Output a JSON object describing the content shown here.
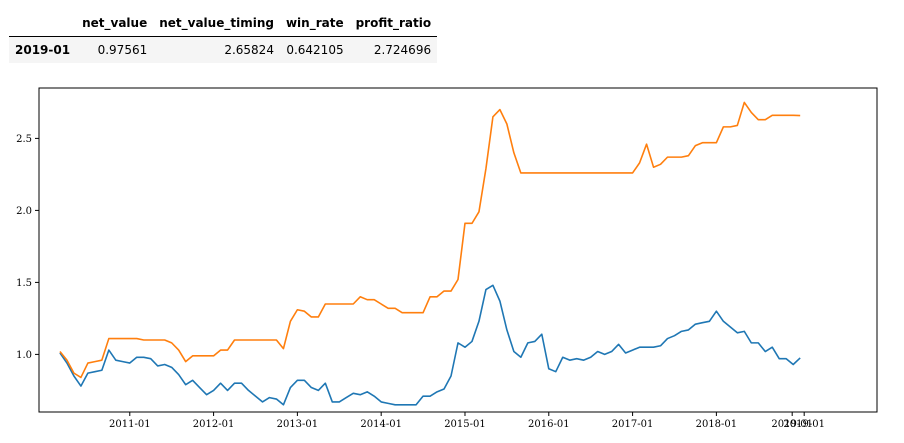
{
  "table": {
    "columns": [
      "net_value",
      "net_value_timing",
      "win_rate",
      "profit_ratio"
    ],
    "rows": [
      {
        "index": "2019-01",
        "values": [
          "0.97561",
          "2.65824",
          "0.642105",
          "2.724696"
        ]
      }
    ]
  },
  "chart_data": {
    "type": "line",
    "title": "",
    "xlabel": "",
    "ylabel": "",
    "x_ticks": [
      "2011-01",
      "2012-01",
      "2013-01",
      "2014-01",
      "2015-01",
      "2016-01",
      "2017-01",
      "2018-01",
      "2019-01",
      "2019-01"
    ],
    "y_ticks": [
      "1.0",
      "1.5",
      "2.0",
      "2.5"
    ],
    "ylim": [
      0.6,
      2.85
    ],
    "xlim": [
      "2009-12",
      "2019-12"
    ],
    "grid": false,
    "legend": "none",
    "series": [
      {
        "color": "#1f77b4",
        "x": [
          "2010-03",
          "2010-04",
          "2010-05",
          "2010-06",
          "2010-07",
          "2010-08",
          "2010-09",
          "2010-10",
          "2010-11",
          "2010-12",
          "2011-01",
          "2011-02",
          "2011-03",
          "2011-04",
          "2011-05",
          "2011-06",
          "2011-07",
          "2011-08",
          "2011-09",
          "2011-10",
          "2011-11",
          "2011-12",
          "2012-01",
          "2012-02",
          "2012-03",
          "2012-04",
          "2012-05",
          "2012-06",
          "2012-07",
          "2012-08",
          "2012-09",
          "2012-10",
          "2012-11",
          "2012-12",
          "2013-01",
          "2013-02",
          "2013-03",
          "2013-04",
          "2013-05",
          "2013-06",
          "2013-07",
          "2013-08",
          "2013-09",
          "2013-10",
          "2013-11",
          "2013-12",
          "2014-01",
          "2014-02",
          "2014-03",
          "2014-04",
          "2014-05",
          "2014-06",
          "2014-07",
          "2014-08",
          "2014-09",
          "2014-10",
          "2014-11",
          "2014-12",
          "2015-01",
          "2015-02",
          "2015-03",
          "2015-04",
          "2015-05",
          "2015-06",
          "2015-07",
          "2015-08",
          "2015-09",
          "2015-10",
          "2015-11",
          "2015-12",
          "2016-01",
          "2016-02",
          "2016-03",
          "2016-04",
          "2016-05",
          "2016-06",
          "2016-07",
          "2016-08",
          "2016-09",
          "2016-10",
          "2016-11",
          "2016-12",
          "2017-01",
          "2017-02",
          "2017-03",
          "2017-04",
          "2017-05",
          "2017-06",
          "2017-07",
          "2017-08",
          "2017-09",
          "2017-10",
          "2017-11",
          "2017-12",
          "2018-01",
          "2018-02",
          "2018-03",
          "2018-04",
          "2018-05",
          "2018-06",
          "2018-07",
          "2018-08",
          "2018-09",
          "2018-10",
          "2018-11",
          "2018-12",
          "2019-01"
        ],
        "values": [
          1.01,
          0.94,
          0.85,
          0.78,
          0.87,
          0.88,
          0.89,
          1.03,
          0.96,
          0.95,
          0.94,
          0.98,
          0.98,
          0.97,
          0.92,
          0.93,
          0.91,
          0.86,
          0.79,
          0.82,
          0.77,
          0.72,
          0.75,
          0.8,
          0.75,
          0.8,
          0.8,
          0.75,
          0.71,
          0.67,
          0.7,
          0.69,
          0.65,
          0.77,
          0.82,
          0.82,
          0.77,
          0.75,
          0.8,
          0.67,
          0.67,
          0.7,
          0.73,
          0.72,
          0.74,
          0.71,
          0.67,
          0.66,
          0.65,
          0.65,
          0.65,
          0.65,
          0.71,
          0.71,
          0.74,
          0.76,
          0.85,
          1.08,
          1.05,
          1.09,
          1.23,
          1.45,
          1.48,
          1.37,
          1.17,
          1.02,
          0.98,
          1.08,
          1.09,
          1.14,
          0.9,
          0.88,
          0.98,
          0.96,
          0.97,
          0.96,
          0.98,
          1.02,
          1.0,
          1.02,
          1.07,
          1.01,
          1.03,
          1.05,
          1.05,
          1.05,
          1.06,
          1.11,
          1.13,
          1.16,
          1.17,
          1.21,
          1.22,
          1.23,
          1.3,
          1.23,
          1.19,
          1.15,
          1.16,
          1.08,
          1.08,
          1.02,
          1.05,
          0.97,
          0.97,
          0.93,
          0.97561
        ]
      },
      {
        "color": "#ff7f0e",
        "x": [
          "2010-03",
          "2010-04",
          "2010-05",
          "2010-06",
          "2010-07",
          "2010-08",
          "2010-09",
          "2010-10",
          "2010-11",
          "2010-12",
          "2011-01",
          "2011-02",
          "2011-03",
          "2011-04",
          "2011-05",
          "2011-06",
          "2011-07",
          "2011-08",
          "2011-09",
          "2011-10",
          "2011-11",
          "2011-12",
          "2012-01",
          "2012-02",
          "2012-03",
          "2012-04",
          "2012-05",
          "2012-06",
          "2012-07",
          "2012-08",
          "2012-09",
          "2012-10",
          "2012-11",
          "2012-12",
          "2013-01",
          "2013-02",
          "2013-03",
          "2013-04",
          "2013-05",
          "2013-06",
          "2013-07",
          "2013-08",
          "2013-09",
          "2013-10",
          "2013-11",
          "2013-12",
          "2014-01",
          "2014-02",
          "2014-03",
          "2014-04",
          "2014-05",
          "2014-06",
          "2014-07",
          "2014-08",
          "2014-09",
          "2014-10",
          "2014-11",
          "2014-12",
          "2015-01",
          "2015-02",
          "2015-03",
          "2015-04",
          "2015-05",
          "2015-06",
          "2015-07",
          "2015-08",
          "2015-09",
          "2015-10",
          "2015-11",
          "2015-12",
          "2016-01",
          "2016-02",
          "2016-03",
          "2016-04",
          "2016-05",
          "2016-06",
          "2016-07",
          "2016-08",
          "2016-09",
          "2016-10",
          "2016-11",
          "2016-12",
          "2017-01",
          "2017-02",
          "2017-03",
          "2017-04",
          "2017-05",
          "2017-06",
          "2017-07",
          "2017-08",
          "2017-09",
          "2017-10",
          "2017-11",
          "2017-12",
          "2018-01",
          "2018-02",
          "2018-03",
          "2018-04",
          "2018-05",
          "2018-06",
          "2018-07",
          "2018-08",
          "2018-09",
          "2018-10",
          "2018-11",
          "2018-12",
          "2019-01"
        ],
        "values": [
          1.02,
          0.96,
          0.87,
          0.84,
          0.94,
          0.95,
          0.96,
          1.11,
          1.11,
          1.11,
          1.11,
          1.11,
          1.1,
          1.1,
          1.1,
          1.1,
          1.08,
          1.03,
          0.95,
          0.99,
          0.99,
          0.99,
          0.99,
          1.03,
          1.03,
          1.1,
          1.1,
          1.1,
          1.1,
          1.1,
          1.1,
          1.1,
          1.04,
          1.23,
          1.31,
          1.3,
          1.26,
          1.26,
          1.35,
          1.35,
          1.35,
          1.35,
          1.35,
          1.4,
          1.38,
          1.38,
          1.35,
          1.32,
          1.32,
          1.29,
          1.29,
          1.29,
          1.29,
          1.4,
          1.4,
          1.44,
          1.44,
          1.52,
          1.91,
          1.91,
          1.99,
          2.29,
          2.65,
          2.7,
          2.6,
          2.4,
          2.26,
          2.26,
          2.26,
          2.26,
          2.26,
          2.26,
          2.26,
          2.26,
          2.26,
          2.26,
          2.26,
          2.26,
          2.26,
          2.26,
          2.26,
          2.26,
          2.26,
          2.33,
          2.46,
          2.3,
          2.32,
          2.37,
          2.37,
          2.37,
          2.38,
          2.45,
          2.47,
          2.47,
          2.47,
          2.58,
          2.58,
          2.59,
          2.75,
          2.68,
          2.63,
          2.63,
          2.66,
          2.66,
          2.66,
          2.66,
          2.65824
        ]
      }
    ]
  }
}
